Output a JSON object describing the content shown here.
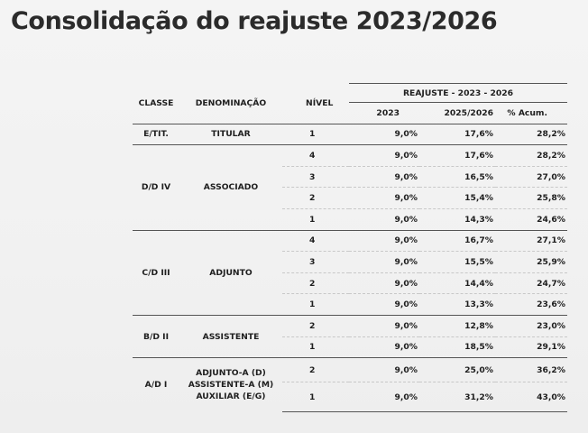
{
  "title": "Consolidação do reajuste 2023/2026",
  "headers": {
    "classe": "CLASSE",
    "denominacao": "DENOMINAÇÃO",
    "nivel": "NÍVEL",
    "group": "REAJUSTE - 2023 - 2026",
    "y2023": "2023",
    "y2025": "2025/2026",
    "acum": "% Acum."
  },
  "groups": [
    {
      "classe": "E/TIT.",
      "denominacao": [
        "TITULAR"
      ],
      "rows": [
        {
          "nivel": "1",
          "y2023": "9,0%",
          "y2025": "17,6%",
          "acum": "28,2%"
        }
      ]
    },
    {
      "classe": "D/D IV",
      "denominacao": [
        "ASSOCIADO"
      ],
      "rows": [
        {
          "nivel": "4",
          "y2023": "9,0%",
          "y2025": "17,6%",
          "acum": "28,2%"
        },
        {
          "nivel": "3",
          "y2023": "9,0%",
          "y2025": "16,5%",
          "acum": "27,0%"
        },
        {
          "nivel": "2",
          "y2023": "9,0%",
          "y2025": "15,4%",
          "acum": "25,8%"
        },
        {
          "nivel": "1",
          "y2023": "9,0%",
          "y2025": "14,3%",
          "acum": "24,6%"
        }
      ]
    },
    {
      "classe": "C/D III",
      "denominacao": [
        "ADJUNTO"
      ],
      "rows": [
        {
          "nivel": "4",
          "y2023": "9,0%",
          "y2025": "16,7%",
          "acum": "27,1%"
        },
        {
          "nivel": "3",
          "y2023": "9,0%",
          "y2025": "15,5%",
          "acum": "25,9%"
        },
        {
          "nivel": "2",
          "y2023": "9,0%",
          "y2025": "14,4%",
          "acum": "24,7%"
        },
        {
          "nivel": "1",
          "y2023": "9,0%",
          "y2025": "13,3%",
          "acum": "23,6%"
        }
      ]
    },
    {
      "classe": "B/D II",
      "denominacao": [
        "ASSISTENTE"
      ],
      "rows": [
        {
          "nivel": "2",
          "y2023": "9,0%",
          "y2025": "12,8%",
          "acum": "23,0%"
        },
        {
          "nivel": "1",
          "y2023": "9,0%",
          "y2025": "18,5%",
          "acum": "29,1%"
        }
      ]
    },
    {
      "classe": "A/D I",
      "denominacao": [
        "ADJUNTO-A (D)",
        "ASSISTENTE-A (M)",
        "AUXILIAR (E/G)"
      ],
      "rows": [
        {
          "nivel": "2",
          "y2023": "9,0%",
          "y2025": "25,0%",
          "acum": "36,2%"
        },
        {
          "nivel": "1",
          "y2023": "9,0%",
          "y2025": "31,2%",
          "acum": "43,0%"
        }
      ]
    }
  ]
}
